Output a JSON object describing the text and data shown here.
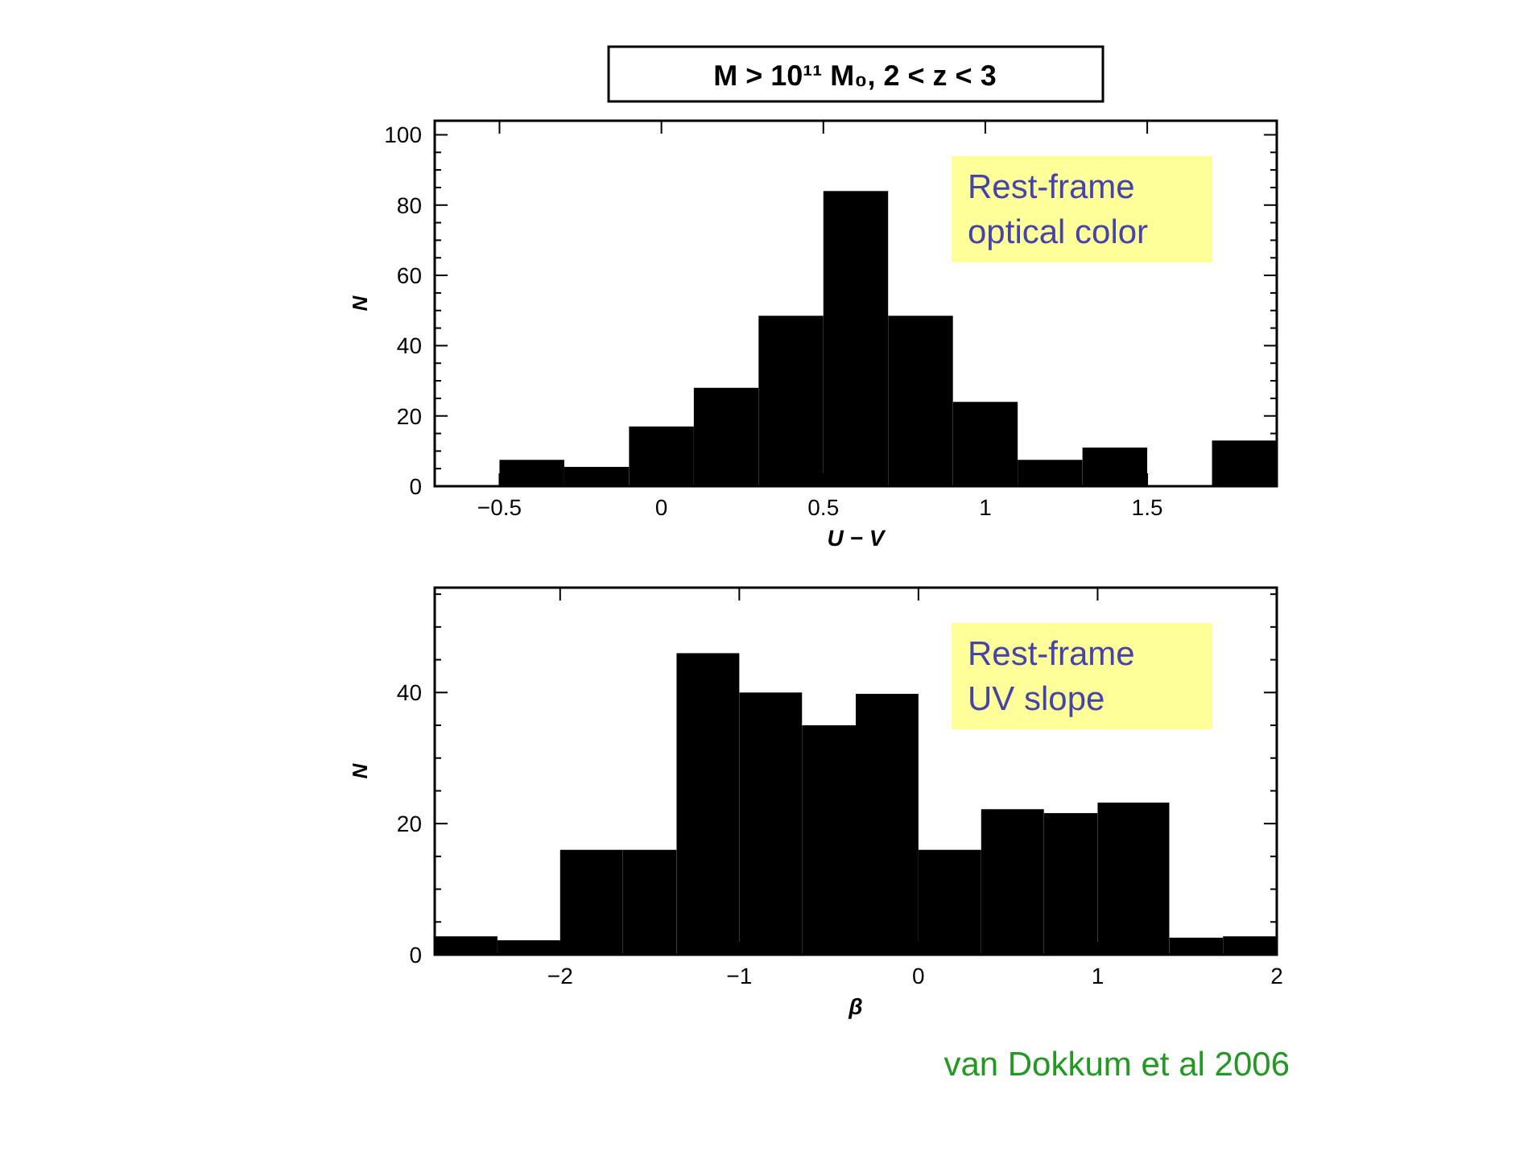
{
  "chart_data": [
    {
      "type": "histogram",
      "title": "M > 10¹¹ M₀, 2 < z < 3",
      "xlabel": "U − V",
      "ylabel": "N",
      "bins": [
        -0.5,
        -0.3,
        -0.1,
        0.1,
        0.3,
        0.5,
        0.7,
        0.9,
        1.1,
        1.3,
        1.5,
        1.7,
        1.9
      ],
      "values": [
        7.5,
        5.5,
        17,
        28,
        48.5,
        84,
        48.5,
        24,
        7.5,
        11,
        0,
        13
      ],
      "color": "#000000",
      "xlim": [
        -0.7,
        1.9
      ],
      "ylim": [
        0,
        104
      ],
      "xticks": [
        {
          "value": -0.5,
          "label": "−0.5"
        },
        0,
        0.5,
        1,
        1.5
      ],
      "yticks": [
        0,
        {
          "value": 5,
          "label": null
        },
        {
          "value": 10,
          "label": null
        },
        {
          "value": 15,
          "label": null
        },
        20,
        {
          "value": 25,
          "label": null
        },
        {
          "value": 30,
          "label": null
        },
        {
          "value": 35,
          "label": null
        },
        40,
        {
          "value": 45,
          "label": null
        },
        {
          "value": 50,
          "label": null
        },
        {
          "value": 55,
          "label": null
        },
        60,
        {
          "value": 65,
          "label": null
        },
        {
          "value": 70,
          "label": null
        },
        {
          "value": 75,
          "label": null
        },
        80,
        {
          "value": 85,
          "label": null
        },
        {
          "value": 90,
          "label": null
        },
        {
          "value": 95,
          "label": null
        },
        100
      ],
      "annotations": [
        "Rest-frame\noptical color"
      ]
    },
    {
      "type": "histogram",
      "xlabel": "β",
      "ylabel": "N",
      "bins": [
        -2.7,
        -2.35,
        -2,
        -1.65,
        -1.35,
        -1,
        -0.65,
        -0.35,
        0,
        0.35,
        0.7,
        1,
        1.4,
        1.7,
        2
      ],
      "values": [
        2.8,
        2.2,
        16,
        16,
        46,
        40,
        35,
        39.8,
        16,
        22.2,
        21.6,
        23.2,
        2.6,
        2.8
      ],
      "color": "#000000",
      "xlim": [
        -2.7,
        2
      ],
      "ylim": [
        0,
        56
      ],
      "xticks": [
        {
          "value": -2,
          "label": "−2"
        },
        {
          "value": -1,
          "label": "−1"
        },
        0,
        1,
        2
      ],
      "yticks": [
        0,
        {
          "value": 5,
          "label": null
        },
        {
          "value": 10,
          "label": null
        },
        {
          "value": 15,
          "label": null
        },
        20,
        {
          "value": 25,
          "label": null
        },
        {
          "value": 30,
          "label": null
        },
        {
          "value": 35,
          "label": null
        },
        40,
        {
          "value": 45,
          "label": null
        },
        {
          "value": 50,
          "label": null
        },
        {
          "value": 55,
          "label": null
        }
      ],
      "annotations": [
        "Rest-frame\nUV slope",
        "van Dokkum et al 2006"
      ]
    }
  ]
}
